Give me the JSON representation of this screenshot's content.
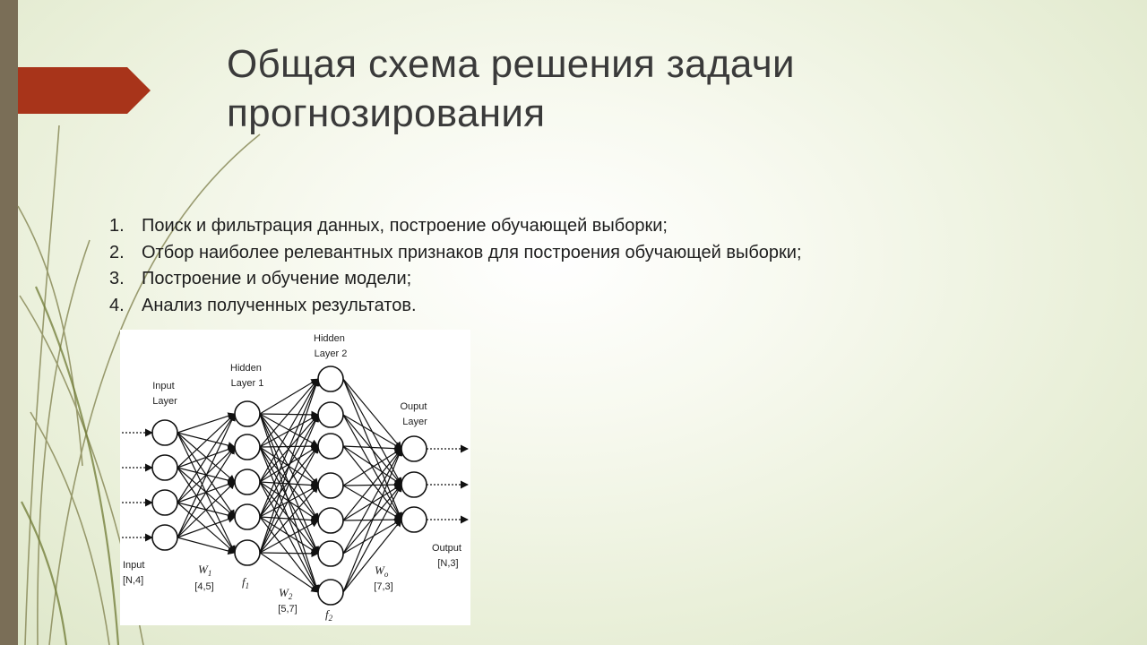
{
  "slide": {
    "title": "Общая схема решения задачи прогнозирования",
    "accent_color": "#a8341a",
    "side_bar_color": "#7a6e57",
    "steps": [
      {
        "num": "1.",
        "text": "Поиск и фильтрация данных, построение обучающей выборки;"
      },
      {
        "num": "2.",
        "text": "Отбор наиболее релевантных признаков для построения обучающей выборки;"
      },
      {
        "num": "3.",
        "text": "Построение и обучение модели;"
      },
      {
        "num": "4.",
        "text": "Анализ полученных результатов."
      }
    ]
  },
  "diagram": {
    "input_layer": {
      "line1": "Input",
      "line2": "Layer"
    },
    "hidden1": {
      "line1": "Hidden",
      "line2": "Layer 1"
    },
    "hidden2": {
      "line1": "Hidden",
      "line2": "Layer 2"
    },
    "output_layer": {
      "line1": "Ouput",
      "line2": "Layer"
    },
    "input_dim": {
      "line1": "Input",
      "line2": "[N,4]"
    },
    "w1": {
      "symbol": "W",
      "sub": "1",
      "dim": "[4,5]"
    },
    "f1": {
      "symbol": "f",
      "sub": "1"
    },
    "w2": {
      "symbol": "W",
      "sub": "2",
      "dim": "[5,7]"
    },
    "f2": {
      "symbol": "f",
      "sub": "2"
    },
    "wo": {
      "symbol": "W",
      "sub": "o",
      "dim": "[7,3]"
    },
    "output_dim": {
      "line1": "Output",
      "line2": "[N,3]"
    },
    "layer_sizes": [
      4,
      5,
      7,
      3
    ]
  }
}
